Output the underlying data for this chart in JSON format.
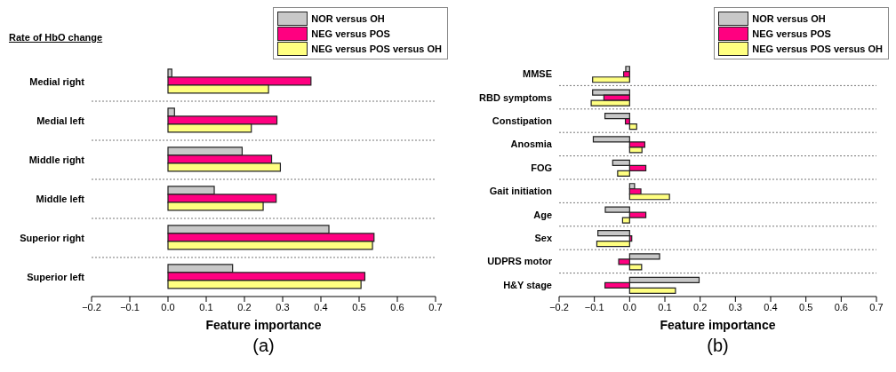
{
  "chart_data": [
    {
      "type": "bar",
      "orientation": "horizontal",
      "title": "Rate of HbO change",
      "xlabel": "Feature importance",
      "categories": [
        "Medial right",
        "Medial left",
        "Middle right",
        "Middle left",
        "Superior right",
        "Superior left"
      ],
      "series": [
        {
          "name": "NOR versus OH",
          "color": "#c8c8c8",
          "values": [
            0.01,
            0.017,
            0.194,
            0.121,
            0.421,
            0.169
          ]
        },
        {
          "name": "NEG versus POS",
          "color": "#ff0080",
          "values": [
            0.374,
            0.285,
            0.271,
            0.283,
            0.539,
            0.515
          ]
        },
        {
          "name": "NEG versus POS versus OH",
          "color": "#ffff80",
          "values": [
            0.263,
            0.218,
            0.294,
            0.249,
            0.535,
            0.505
          ]
        }
      ],
      "xlim": [
        -0.2,
        0.7
      ],
      "xticks": [
        {
          "value": -0.2,
          "label": "−0.2"
        },
        {
          "value": -0.1,
          "label": "−0.1"
        },
        {
          "value": 0,
          "label": "0.0"
        },
        0.1,
        0.2,
        0.3,
        0.4,
        0.5,
        0.6,
        0.7
      ],
      "grid": "y",
      "legend": "top right",
      "annotations": [
        "(a)"
      ]
    },
    {
      "type": "bar",
      "orientation": "horizontal",
      "xlabel": "Feature importance",
      "categories": [
        "MMSE",
        "RBD symptoms",
        "Constipation",
        "Anosmia",
        "FOG",
        "Gait initiation",
        "Age",
        "Sex",
        "UDPRS motor",
        "H&Y stage"
      ],
      "series": [
        {
          "name": "NOR versus OH",
          "color": "#c8c8c8",
          "values": [
            -0.011,
            -0.105,
            -0.07,
            -0.103,
            -0.048,
            0.014,
            -0.069,
            -0.09,
            0.085,
            0.197
          ]
        },
        {
          "name": "NEG versus POS",
          "color": "#ff0080",
          "values": [
            -0.017,
            -0.073,
            -0.012,
            0.043,
            0.046,
            0.032,
            0.046,
            0.006,
            -0.031,
            -0.07
          ]
        },
        {
          "name": "NEG versus POS versus OH",
          "color": "#ffff80",
          "values": [
            -0.105,
            -0.109,
            0.02,
            0.035,
            -0.034,
            0.113,
            -0.02,
            -0.093,
            0.034,
            0.13
          ]
        }
      ],
      "xlim": [
        -0.2,
        0.7
      ],
      "xticks": [
        {
          "value": -0.2,
          "label": "−0.2"
        },
        {
          "value": -0.1,
          "label": "−0.1"
        },
        {
          "value": 0,
          "label": "0.0"
        },
        0.1,
        0.2,
        0.3,
        0.4,
        0.5,
        0.6,
        0.7
      ],
      "grid": "y",
      "legend": "top right",
      "annotations": [
        "(b)"
      ]
    }
  ]
}
